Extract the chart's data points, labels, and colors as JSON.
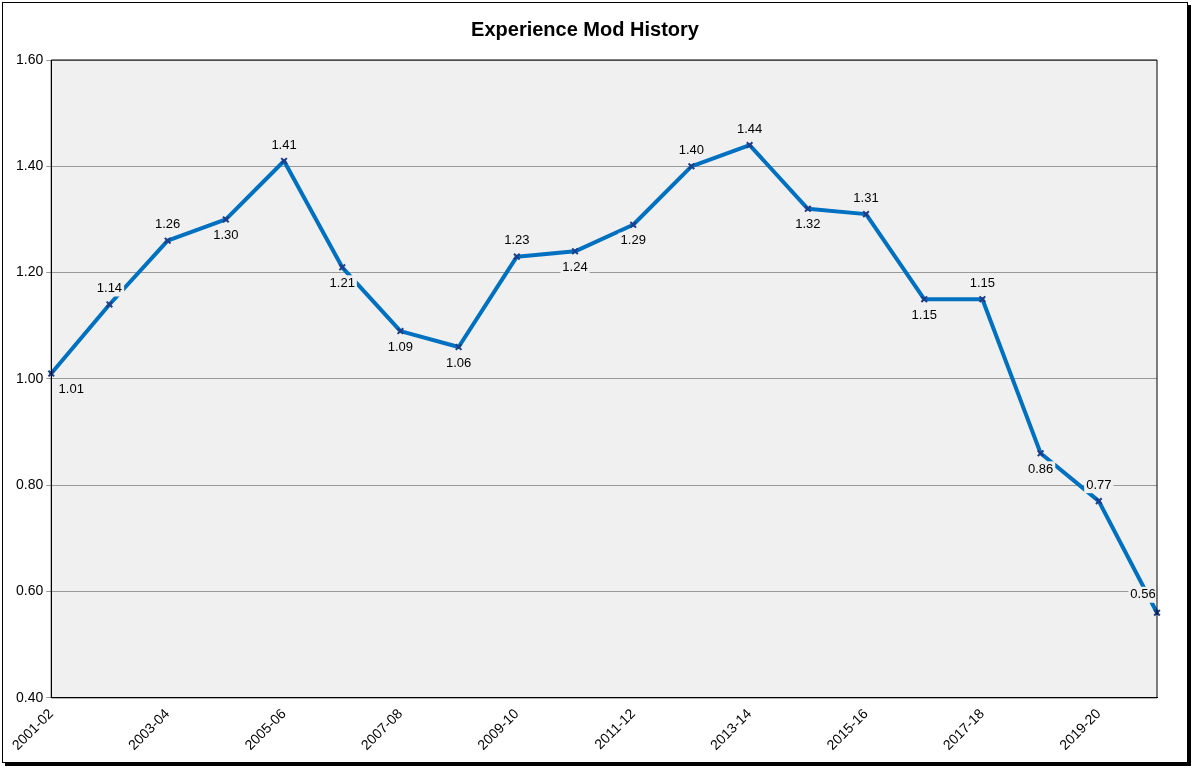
{
  "chart_data": {
    "type": "line",
    "title": "Experience Mod History",
    "categories": [
      "2001-02",
      null,
      "2003-04",
      null,
      "2005-06",
      null,
      "2007-08",
      null,
      "2009-10",
      null,
      "2011-12",
      null,
      "2013-14",
      null,
      "2015-16",
      null,
      "2017-18",
      null,
      "2019-20",
      null
    ],
    "series": [
      {
        "color": "#0070c0",
        "values": [
          1.01,
          1.14,
          1.26,
          1.3,
          1.41,
          1.21,
          1.09,
          1.06,
          1.23,
          1.24,
          1.29,
          1.4,
          1.44,
          1.32,
          1.31,
          1.15,
          1.15,
          0.86,
          0.77,
          0.56
        ],
        "value_labels": [
          "1.01",
          "1.14",
          "1.26",
          "1.30",
          "1.41",
          "1.21",
          "1.09",
          "1.06",
          "1.23",
          "1.24",
          "1.29",
          "1.40",
          "1.44",
          "1.32",
          "1.31",
          "1.15",
          "1.15",
          "0.86",
          "0.77",
          "0.56"
        ]
      }
    ],
    "ylim": [
      0.4,
      1.6
    ],
    "yticks": [
      {
        "value": 0.4,
        "label": "0.40"
      },
      {
        "value": 0.6,
        "label": "0.60"
      },
      {
        "value": 0.8,
        "label": "0.80"
      },
      {
        "value": 1.0,
        "label": "1.00"
      },
      {
        "value": 1.2,
        "label": "1.20"
      },
      {
        "value": 1.4,
        "label": "1.40"
      },
      {
        "value": 1.6,
        "label": "1.60"
      }
    ],
    "grid": "y",
    "legend": false,
    "marker": "cross",
    "line_style": "solid"
  }
}
